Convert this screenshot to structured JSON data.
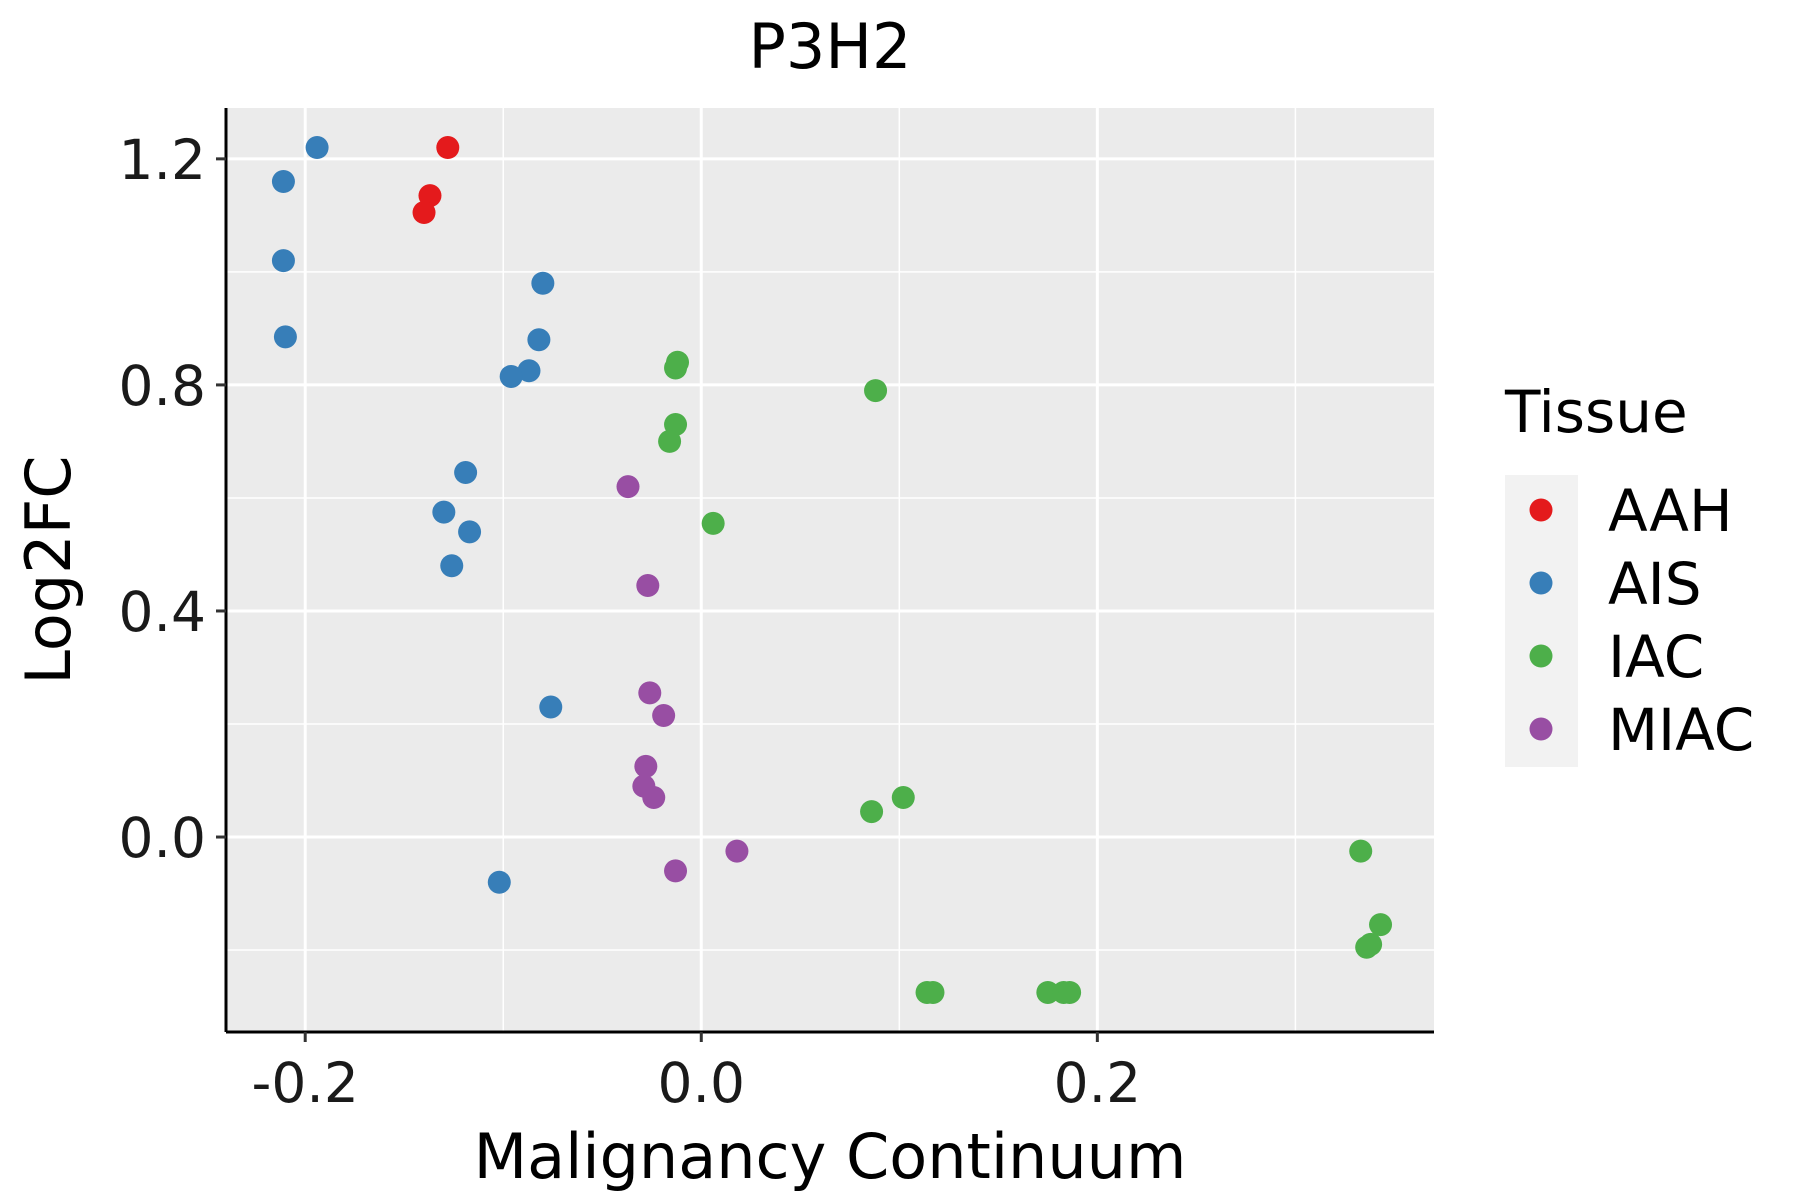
{
  "chart_data": {
    "type": "scatter",
    "title": "P3H2",
    "xlabel": "Malignancy Continuum",
    "ylabel": "Log2FC",
    "xlim": [
      -0.24,
      0.37
    ],
    "ylim": [
      -0.345,
      1.29
    ],
    "x_ticks": [
      -0.2,
      0.0,
      0.2
    ],
    "x_tick_labels": [
      "-0.2",
      "0.0",
      "0.2"
    ],
    "y_ticks": [
      0.0,
      0.4,
      0.8,
      1.2
    ],
    "y_tick_labels": [
      "0.0",
      "0.4",
      "0.8",
      "1.2"
    ],
    "grid": true,
    "legend": {
      "title": "Tissue",
      "position": "right"
    },
    "series": [
      {
        "name": "AAH",
        "color": "#e41a1c",
        "points": [
          {
            "x": -0.128,
            "y": 1.22
          },
          {
            "x": -0.137,
            "y": 1.135
          },
          {
            "x": -0.14,
            "y": 1.105
          }
        ]
      },
      {
        "name": "AIS",
        "color": "#377eb8",
        "points": [
          {
            "x": -0.194,
            "y": 1.22
          },
          {
            "x": -0.211,
            "y": 1.16
          },
          {
            "x": -0.211,
            "y": 1.02
          },
          {
            "x": -0.21,
            "y": 0.885
          },
          {
            "x": -0.08,
            "y": 0.98
          },
          {
            "x": -0.082,
            "y": 0.88
          },
          {
            "x": -0.087,
            "y": 0.825
          },
          {
            "x": -0.096,
            "y": 0.815
          },
          {
            "x": -0.119,
            "y": 0.645
          },
          {
            "x": -0.13,
            "y": 0.575
          },
          {
            "x": -0.117,
            "y": 0.54
          },
          {
            "x": -0.126,
            "y": 0.48
          },
          {
            "x": -0.076,
            "y": 0.23
          },
          {
            "x": -0.102,
            "y": -0.08
          }
        ]
      },
      {
        "name": "IAC",
        "color": "#4daf4a",
        "points": [
          {
            "x": -0.012,
            "y": 0.84
          },
          {
            "x": -0.013,
            "y": 0.83
          },
          {
            "x": -0.013,
            "y": 0.73
          },
          {
            "x": -0.016,
            "y": 0.7
          },
          {
            "x": 0.088,
            "y": 0.79
          },
          {
            "x": 0.006,
            "y": 0.555
          },
          {
            "x": 0.102,
            "y": 0.07
          },
          {
            "x": 0.086,
            "y": 0.045
          },
          {
            "x": 0.114,
            "y": -0.275
          },
          {
            "x": 0.117,
            "y": -0.275
          },
          {
            "x": 0.175,
            "y": -0.275
          },
          {
            "x": 0.183,
            "y": -0.275
          },
          {
            "x": 0.186,
            "y": -0.275
          },
          {
            "x": 0.333,
            "y": -0.025
          },
          {
            "x": 0.343,
            "y": -0.155
          },
          {
            "x": 0.336,
            "y": -0.195
          },
          {
            "x": 0.338,
            "y": -0.19
          }
        ]
      },
      {
        "name": "MIAC",
        "color": "#984ea3",
        "points": [
          {
            "x": -0.037,
            "y": 0.62
          },
          {
            "x": -0.027,
            "y": 0.445
          },
          {
            "x": -0.026,
            "y": 0.255
          },
          {
            "x": -0.019,
            "y": 0.215
          },
          {
            "x": -0.028,
            "y": 0.125
          },
          {
            "x": -0.029,
            "y": 0.09
          },
          {
            "x": -0.024,
            "y": 0.07
          },
          {
            "x": 0.018,
            "y": -0.025
          },
          {
            "x": -0.013,
            "y": -0.06
          }
        ]
      }
    ]
  }
}
